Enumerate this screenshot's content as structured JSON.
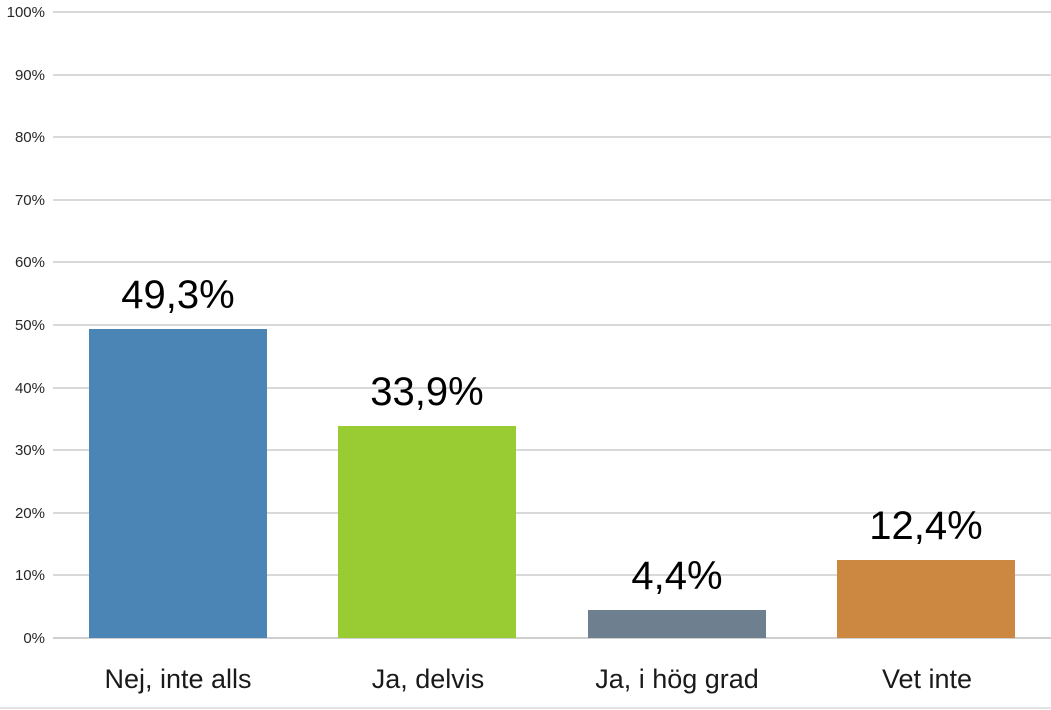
{
  "chart_data": {
    "type": "bar",
    "categories": [
      "Nej, inte alls",
      "Ja, delvis",
      "Ja, i hög grad",
      "Vet inte"
    ],
    "values": [
      49.3,
      33.9,
      4.4,
      12.4
    ],
    "value_labels": [
      "49,3%",
      "33,9%",
      "4,4%",
      "12,4%"
    ],
    "bar_colors": [
      "#4A85B5",
      "#99CC33",
      "#6E7F8F",
      "#CC8840"
    ],
    "title": "",
    "xlabel": "",
    "ylabel": "",
    "ylim": [
      0,
      100
    ],
    "y_tick_step": 10,
    "y_tick_labels": [
      "0%",
      "10%",
      "20%",
      "30%",
      "40%",
      "50%",
      "60%",
      "70%",
      "80%",
      "90%",
      "100%"
    ],
    "grid": true,
    "gridline_color": "#D9D9D9",
    "legend": "none",
    "decimal_separator": ","
  }
}
